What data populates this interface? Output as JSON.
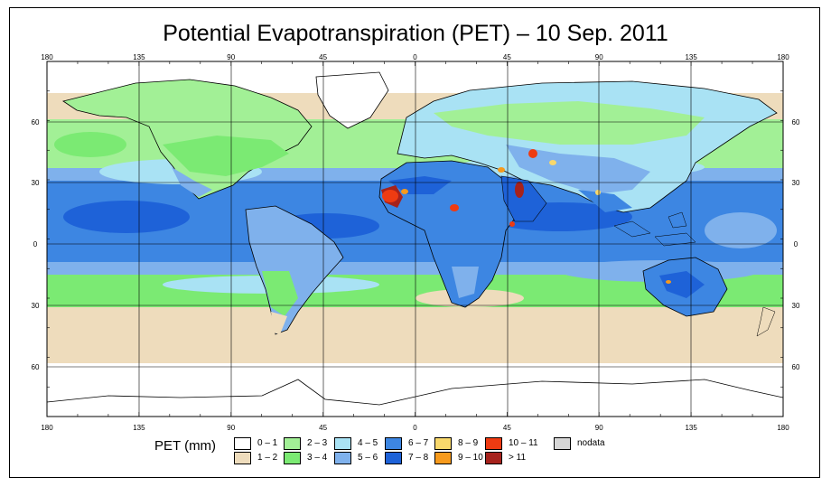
{
  "title": "Potential Evapotranspiration (PET) – 10 Sep. 2011",
  "map": {
    "lon_ticks": [
      "180",
      "135",
      "90",
      "45",
      "0",
      "45",
      "90",
      "135",
      "180"
    ],
    "lat_ticks": [
      "60",
      "30",
      "0",
      "30",
      "60"
    ],
    "lon_range": [
      -180,
      180
    ],
    "lat_range": [
      -90,
      90
    ],
    "grid": true
  },
  "legend": {
    "title": "PET (mm)",
    "items": [
      {
        "label": "0 – 1",
        "color": "#ffffff"
      },
      {
        "label": "1 – 2",
        "color": "#eedcbc"
      },
      {
        "label": "2 – 3",
        "color": "#a2f096"
      },
      {
        "label": "3 – 4",
        "color": "#7bea73"
      },
      {
        "label": "4 – 5",
        "color": "#a9e2f4"
      },
      {
        "label": "5 – 6",
        "color": "#7fb1ec"
      },
      {
        "label": "6 – 7",
        "color": "#3d86e2"
      },
      {
        "label": "7 – 8",
        "color": "#1e62d8"
      },
      {
        "label": "8 – 9",
        "color": "#f8d86c"
      },
      {
        "label": "9 – 10",
        "color": "#f79a1c"
      },
      {
        "label": "10 – 11",
        "color": "#ee3b12"
      },
      {
        "label": "> 11",
        "color": "#a6221c"
      },
      {
        "label": "nodata",
        "color": "#d6d6d6"
      }
    ]
  }
}
